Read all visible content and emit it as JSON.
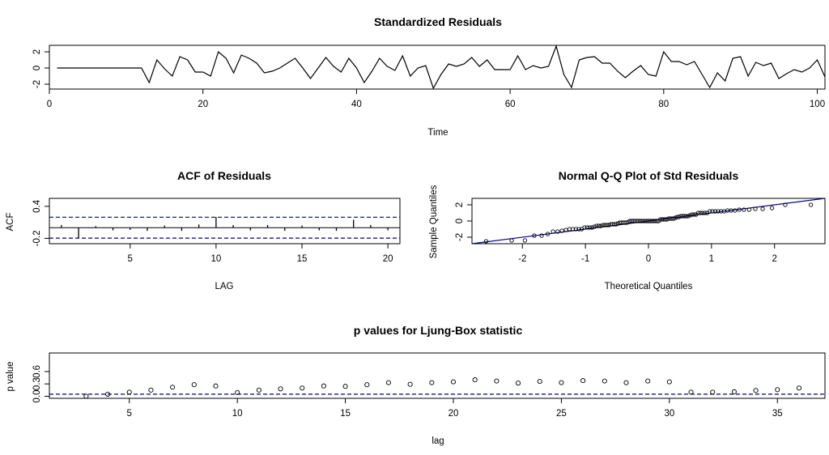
{
  "chart_data": [
    {
      "type": "line",
      "title": "Standardized Residuals",
      "xlabel": "Time",
      "ylabel": "",
      "xlim": [
        0,
        101
      ],
      "ylim": [
        -2.6,
        2.8
      ],
      "xticks": [
        0,
        20,
        40,
        60,
        80,
        100
      ],
      "yticks": [
        -2,
        0,
        2
      ],
      "x_start": 1,
      "values": [
        0,
        0,
        0,
        0,
        0,
        0,
        0,
        0,
        0,
        0,
        0,
        0,
        -1.8,
        1,
        -0.1,
        -1,
        1.4,
        1,
        -0.5,
        -0.5,
        -1,
        2,
        1.2,
        -0.6,
        1.6,
        1.2,
        0.6,
        -0.6,
        -0.4,
        0,
        0.6,
        1.2,
        0,
        -1.3,
        0,
        1.3,
        0.2,
        -0.5,
        1.2,
        0,
        -1.8,
        -0.4,
        1.2,
        0.2,
        -0.3,
        1.5,
        -1,
        0,
        0.3,
        -2.5,
        -0.8,
        0.5,
        0.2,
        0.5,
        1.3,
        0.2,
        1,
        -0.2,
        -0.2,
        -0.2,
        1.5,
        -0.2,
        0.3,
        0,
        0.2,
        2.7,
        -0.8,
        -2.4,
        1,
        1.3,
        1.4,
        0.6,
        0.6,
        -0.4,
        -1.2,
        -0.4,
        0.3,
        -0.8,
        -1,
        2,
        0.8,
        0.8,
        0.4,
        0.8,
        -0.8,
        -2.4,
        -0.6,
        -1.6,
        1.2,
        1.4,
        -1,
        0.7,
        0.3,
        0.6,
        -1.3,
        -0.7,
        -0.2,
        -0.5,
        0,
        1,
        -1.1
      ]
    },
    {
      "type": "bar",
      "title": "ACF of Residuals",
      "xlabel": "LAG",
      "ylabel": "ACF",
      "xlim": [
        0.3,
        20.7
      ],
      "ylim": [
        -0.3,
        0.55
      ],
      "xticks": [
        5,
        10,
        15,
        20
      ],
      "yticks": [
        -0.2,
        0.4
      ],
      "lags": [
        1,
        2,
        3,
        4,
        5,
        6,
        7,
        8,
        9,
        10,
        11,
        12,
        13,
        14,
        15,
        16,
        17,
        18,
        19,
        20
      ],
      "values": [
        0.05,
        -0.2,
        0.03,
        -0.05,
        -0.04,
        -0.06,
        0.04,
        -0.06,
        0.06,
        0.2,
        0.05,
        -0.05,
        0.05,
        -0.06,
        0.04,
        -0.05,
        -0.06,
        0.15,
        0.05,
        -0.05
      ],
      "ci": [
        0.196,
        -0.196
      ],
      "zero_line": true
    },
    {
      "type": "scatter",
      "title": "Normal Q-Q Plot of Std Residuals",
      "xlabel": "Theoretical Quantiles",
      "ylabel": "Sample Quantiles",
      "xlim": [
        -2.8,
        2.8
      ],
      "ylim": [
        -2.8,
        2.8
      ],
      "xticks": [
        -2,
        -1,
        0,
        1,
        2
      ],
      "yticks": [
        -2,
        0,
        2
      ],
      "n_points": 100,
      "line": {
        "intercept": 0,
        "slope": 1
      }
    },
    {
      "type": "scatter",
      "title": "p values for Ljung-Box statistic",
      "xlabel": "lag",
      "ylabel": "p value",
      "xlim": [
        1.3,
        37.2
      ],
      "ylim": [
        -0.05,
        1.05
      ],
      "xticks": [
        5,
        10,
        15,
        20,
        25,
        30,
        35
      ],
      "yticks": [
        0,
        0.3,
        0.6
      ],
      "ytick_labels": [
        "0.0",
        "0.3",
        "0.6"
      ],
      "x": [
        3,
        4,
        5,
        6,
        7,
        8,
        9,
        10,
        11,
        12,
        13,
        14,
        15,
        16,
        17,
        18,
        19,
        20,
        21,
        22,
        23,
        24,
        25,
        26,
        27,
        28,
        29,
        30,
        31,
        32,
        33,
        34,
        35,
        36
      ],
      "values": [
        0.0,
        0.05,
        0.1,
        0.15,
        0.22,
        0.28,
        0.25,
        0.09,
        0.15,
        0.18,
        0.2,
        0.25,
        0.24,
        0.28,
        0.33,
        0.29,
        0.33,
        0.35,
        0.4,
        0.37,
        0.32,
        0.36,
        0.33,
        0.38,
        0.37,
        0.33,
        0.37,
        0.35,
        0.1,
        0.1,
        0.11,
        0.14,
        0.16,
        0.2
      ],
      "ref_line": 0.05
    }
  ]
}
